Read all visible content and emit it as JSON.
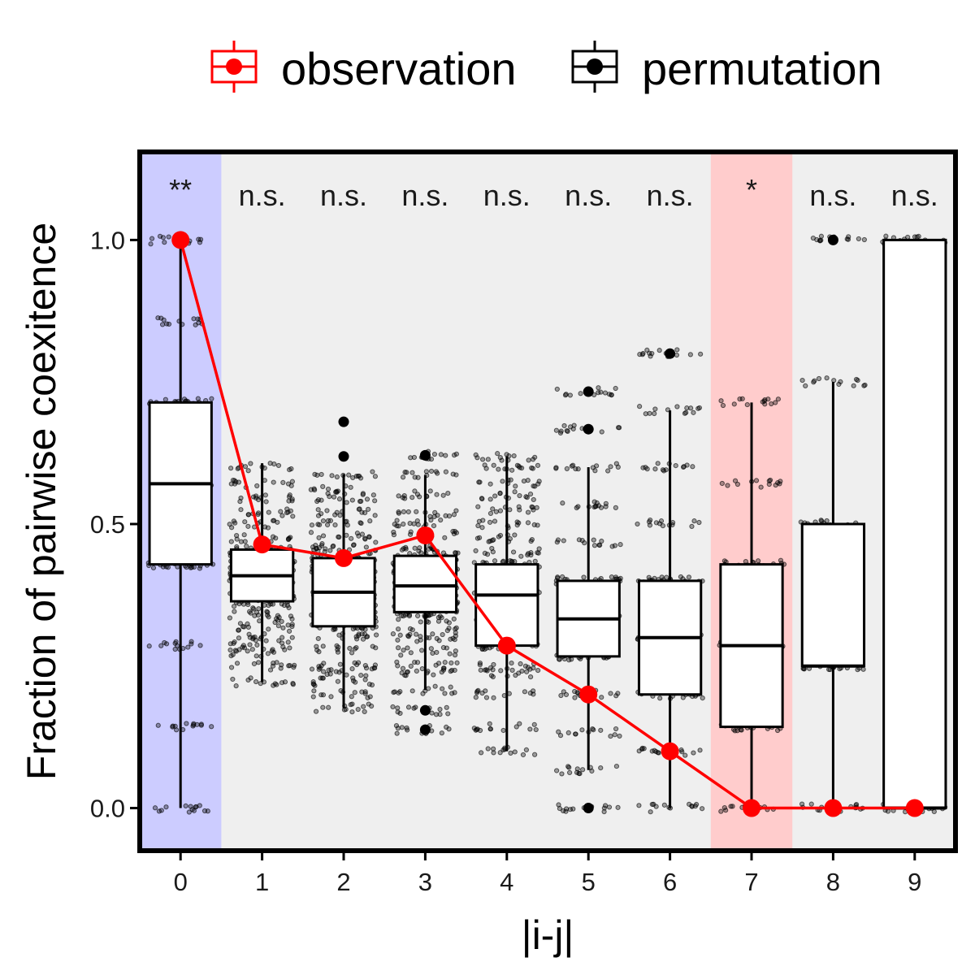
{
  "legend": {
    "observation_label": "observation",
    "permutation_label": "permutation"
  },
  "colors": {
    "observation": "#ff0000",
    "permutation": "#000000",
    "panel_bg": "#efefef",
    "highlight_blue": "#ccccff",
    "highlight_red": "#ffcccc"
  },
  "chart_data": {
    "type": "box",
    "title": "",
    "xlabel": "|i-j|",
    "ylabel": "Fraction of pairwise coexitence",
    "categories": [
      "0",
      "1",
      "2",
      "3",
      "4",
      "5",
      "6",
      "7",
      "8",
      "9"
    ],
    "ylim": [
      -0.075,
      1.155
    ],
    "yticks": [
      0.0,
      0.5,
      1.0
    ],
    "ytick_labels": [
      "0.0",
      "0.5",
      "1.0"
    ],
    "significance": [
      "**",
      "n.s.",
      "n.s.",
      "n.s.",
      "n.s.",
      "n.s.",
      "n.s.",
      "*",
      "n.s.",
      "n.s."
    ],
    "highlight": {
      "0": "blue",
      "7": "red"
    },
    "observation": {
      "name": "observation",
      "values": [
        1.0,
        0.464,
        0.44,
        0.48,
        0.286,
        0.2,
        0.1,
        0.0,
        0.0,
        0.0
      ]
    },
    "permutation": {
      "name": "permutation",
      "boxes": [
        {
          "q1": 0.429,
          "median": 0.571,
          "q3": 0.714,
          "whisker_low": 0.0,
          "whisker_high": 1.0,
          "outliers": []
        },
        {
          "q1": 0.364,
          "median": 0.409,
          "q3": 0.455,
          "whisker_low": 0.222,
          "whisker_high": 0.607,
          "outliers": []
        },
        {
          "q1": 0.32,
          "median": 0.38,
          "q3": 0.44,
          "whisker_low": 0.176,
          "whisker_high": 0.588,
          "outliers": [
            0.619,
            0.68
          ]
        },
        {
          "q1": 0.345,
          "median": 0.391,
          "q3": 0.444,
          "whisker_low": 0.208,
          "whisker_high": 0.586,
          "outliers": [
            0.138,
            0.172,
            0.621
          ]
        },
        {
          "q1": 0.286,
          "median": 0.375,
          "q3": 0.429,
          "whisker_low": 0.1,
          "whisker_high": 0.619,
          "outliers": []
        },
        {
          "q1": 0.267,
          "median": 0.333,
          "q3": 0.4,
          "whisker_low": 0.067,
          "whisker_high": 0.6,
          "outliers": [
            0.0,
            0.667,
            0.733
          ]
        },
        {
          "q1": 0.2,
          "median": 0.3,
          "q3": 0.4,
          "whisker_low": 0.0,
          "whisker_high": 0.7,
          "outliers": [
            0.8
          ]
        },
        {
          "q1": 0.143,
          "median": 0.286,
          "q3": 0.429,
          "whisker_low": 0.0,
          "whisker_high": 0.714,
          "outliers": []
        },
        {
          "q1": 0.25,
          "median": 0.25,
          "q3": 0.5,
          "whisker_low": 0.0,
          "whisker_high": 0.75,
          "outliers": [
            1.0
          ]
        },
        {
          "q1": 0.0,
          "median": 0.0,
          "q3": 1.0,
          "whisker_low": 0.0,
          "whisker_high": 1.0,
          "outliers": []
        }
      ],
      "jitter_levels": [
        [
          0.0,
          0.143,
          0.286,
          0.429,
          0.571,
          0.714,
          0.857,
          1.0
        ],
        [
          0.222,
          0.25,
          0.273,
          0.286,
          0.3,
          0.318,
          0.333,
          0.35,
          0.364,
          0.375,
          0.389,
          0.4,
          0.409,
          0.417,
          0.429,
          0.438,
          0.45,
          0.458,
          0.474,
          0.5,
          0.52,
          0.545,
          0.571,
          0.6
        ],
        [
          0.176,
          0.2,
          0.222,
          0.24,
          0.25,
          0.28,
          0.3,
          0.32,
          0.333,
          0.35,
          0.36,
          0.375,
          0.38,
          0.4,
          0.417,
          0.42,
          0.44,
          0.45,
          0.462,
          0.48,
          0.5,
          0.52,
          0.545,
          0.56,
          0.588
        ],
        [
          0.138,
          0.172,
          0.208,
          0.24,
          0.25,
          0.276,
          0.3,
          0.31,
          0.333,
          0.345,
          0.36,
          0.375,
          0.391,
          0.4,
          0.414,
          0.43,
          0.444,
          0.458,
          0.48,
          0.5,
          0.52,
          0.552,
          0.586,
          0.621
        ],
        [
          0.1,
          0.143,
          0.2,
          0.238,
          0.25,
          0.286,
          0.333,
          0.375,
          0.381,
          0.4,
          0.429,
          0.45,
          0.476,
          0.5,
          0.524,
          0.55,
          0.571,
          0.6,
          0.619
        ],
        [
          0.0,
          0.067,
          0.133,
          0.2,
          0.267,
          0.333,
          0.4,
          0.467,
          0.533,
          0.6,
          0.667,
          0.733
        ],
        [
          0.0,
          0.1,
          0.2,
          0.3,
          0.4,
          0.5,
          0.6,
          0.7,
          0.8
        ],
        [
          0.0,
          0.143,
          0.286,
          0.429,
          0.571,
          0.714
        ],
        [
          0.0,
          0.25,
          0.5,
          0.75,
          1.0
        ],
        [
          0.0,
          1.0
        ]
      ]
    },
    "grid": false,
    "legend_position": "top"
  }
}
